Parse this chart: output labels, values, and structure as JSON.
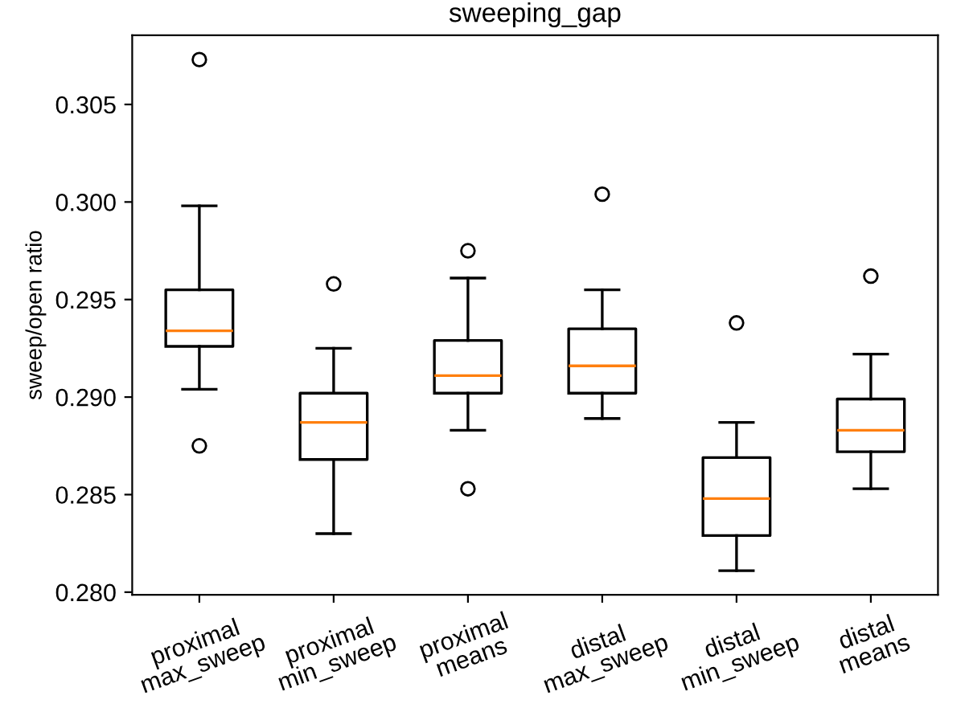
{
  "chart_data": {
    "type": "box",
    "title": "sweeping_gap",
    "ylabel": "sweep/open ratio",
    "categories": [
      "proximal\nmax_sweep",
      "proximal\nmin_sweep",
      "proximal\nmeans",
      "distal\nmax_sweep",
      "distal\nmin_sweep",
      "distal\nmeans"
    ],
    "boxes": [
      {
        "low": 0.2904,
        "q1": 0.2926,
        "median": 0.2934,
        "q3": 0.2955,
        "high": 0.2998,
        "outliers": [
          0.3073,
          0.2875
        ]
      },
      {
        "low": 0.283,
        "q1": 0.2868,
        "median": 0.2887,
        "q3": 0.2902,
        "high": 0.2925,
        "outliers": [
          0.2958
        ]
      },
      {
        "low": 0.2883,
        "q1": 0.2902,
        "median": 0.2911,
        "q3": 0.2929,
        "high": 0.2961,
        "outliers": [
          0.2975,
          0.2853
        ]
      },
      {
        "low": 0.2889,
        "q1": 0.2902,
        "median": 0.2916,
        "q3": 0.2935,
        "high": 0.2955,
        "outliers": [
          0.3004
        ]
      },
      {
        "low": 0.2811,
        "q1": 0.2829,
        "median": 0.2848,
        "q3": 0.2869,
        "high": 0.2887,
        "outliers": [
          0.2938
        ]
      },
      {
        "low": 0.2853,
        "q1": 0.2872,
        "median": 0.2883,
        "q3": 0.2899,
        "high": 0.2922,
        "outliers": [
          0.2962
        ]
      }
    ],
    "color": "#000000",
    "ylim": [
      0.27986,
      0.30855
    ],
    "yticks": [
      {
        "value": 0.28,
        "label": "0.280"
      },
      {
        "value": 0.285,
        "label": "0.285"
      },
      {
        "value": 0.29,
        "label": "0.290"
      },
      {
        "value": 0.295,
        "label": "0.295"
      },
      {
        "value": 0.3,
        "label": "0.300"
      },
      {
        "value": 0.305,
        "label": "0.305"
      }
    ],
    "grid": false
  }
}
